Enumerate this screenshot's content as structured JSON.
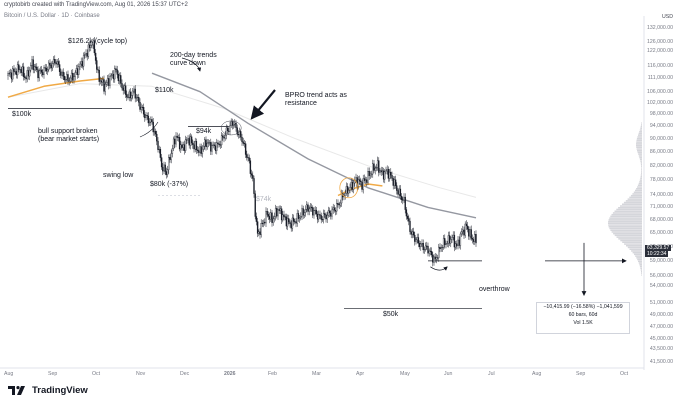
{
  "header": {
    "line1": "cryptobirb created with TradingView.com, Aug 01, 2026 15:37 UTC+2",
    "line2": "Bitcoin / U.S. Dollar · 1D · Coinbase",
    "currency": "USD"
  },
  "logo_text": "TradingView",
  "price_labels": [
    "63,329.57",
    "10:22:34"
  ],
  "stat_box": {
    "line1": "−10,415.99 (−16.58%) −1,041,599",
    "line2": "60 bars, 60d",
    "line3": "Vol 1.5K"
  },
  "annotations": {
    "cycle_top": "$126.2k (cycle top)",
    "trends_200": "200-day trends\ncurve down",
    "bpro": "BPRO trend acts as\nresistance",
    "k110": "$110k",
    "k100": "$100k",
    "k94": "$94k",
    "bull_support": "bull support broken\n(bear market starts)",
    "swing_low": "swing low",
    "k80": "$80k (-37%)",
    "k74": "$74k",
    "overthrow": "overthrow",
    "k50": "$50k"
  },
  "colors": {
    "up_candle": "#131722",
    "down_candle": "#131722",
    "sma200": "#9598a1",
    "ema200": "#e8e8e8",
    "bull_band": "#f0a945",
    "arrow": "#131722",
    "volume_profile": "#b2b5be"
  },
  "chart_data": {
    "type": "candlestick",
    "title": "Bitcoin / U.S. Dollar · 1D · Coinbase",
    "x_ticks": [
      "Aug",
      "Sep",
      "Oct",
      "Nov",
      "Dec",
      "2026",
      "Feb",
      "Mar",
      "Apr",
      "May",
      "Jun",
      "Jul",
      "Aug",
      "Sep",
      "Oct"
    ],
    "y_ticks": [
      132000,
      126000,
      122000,
      116000,
      111000,
      106000,
      102000,
      98000,
      94000,
      90000,
      86000,
      82000,
      78000,
      74000,
      71000,
      68000,
      65000,
      62000,
      59000,
      56000,
      54000,
      51000,
      49000,
      47000,
      45000,
      43500,
      41500
    ],
    "y_scale": "log",
    "ylim": [
      41000,
      134000
    ],
    "price_path": [
      [
        0,
        112000
      ],
      [
        5,
        113500
      ],
      [
        10,
        115000
      ],
      [
        15,
        111000
      ],
      [
        20,
        117000
      ],
      [
        25,
        113000
      ],
      [
        30,
        114000
      ],
      [
        35,
        116000
      ],
      [
        40,
        118000
      ],
      [
        45,
        112000
      ],
      [
        50,
        110500
      ],
      [
        55,
        112000
      ],
      [
        60,
        116000
      ],
      [
        65,
        121000
      ],
      [
        68,
        123500
      ],
      [
        70,
        126200
      ],
      [
        72,
        122000
      ],
      [
        75,
        112000
      ],
      [
        80,
        108000
      ],
      [
        85,
        111000
      ],
      [
        90,
        114000
      ],
      [
        95,
        108000
      ],
      [
        100,
        104000
      ],
      [
        105,
        106000
      ],
      [
        110,
        101000
      ],
      [
        115,
        97000
      ],
      [
        120,
        95000
      ],
      [
        125,
        88000
      ],
      [
        128,
        82000
      ],
      [
        132,
        80000
      ],
      [
        136,
        86000
      ],
      [
        140,
        91000
      ],
      [
        145,
        87000
      ],
      [
        150,
        90000
      ],
      [
        155,
        88000
      ],
      [
        160,
        86000
      ],
      [
        165,
        89000
      ],
      [
        170,
        87500
      ],
      [
        175,
        88000
      ],
      [
        180,
        91000
      ],
      [
        185,
        94000
      ],
      [
        188,
        95500
      ],
      [
        190,
        93000
      ],
      [
        195,
        90000
      ],
      [
        198,
        86000
      ],
      [
        200,
        84000
      ],
      [
        204,
        78000
      ],
      [
        206,
        70000
      ],
      [
        208,
        64500
      ],
      [
        212,
        67000
      ],
      [
        216,
        69500
      ],
      [
        220,
        68000
      ],
      [
        225,
        70500
      ],
      [
        230,
        68500
      ],
      [
        235,
        67000
      ],
      [
        240,
        68000
      ],
      [
        245,
        69500
      ],
      [
        250,
        71000
      ],
      [
        255,
        70000
      ],
      [
        260,
        68500
      ],
      [
        265,
        69000
      ],
      [
        270,
        70000
      ],
      [
        275,
        71500
      ],
      [
        280,
        74500
      ],
      [
        285,
        76000
      ],
      [
        290,
        78000
      ],
      [
        295,
        77000
      ],
      [
        300,
        79000
      ],
      [
        305,
        81500
      ],
      [
        308,
        82000
      ],
      [
        312,
        79500
      ],
      [
        316,
        80500
      ],
      [
        320,
        78500
      ],
      [
        325,
        75000
      ],
      [
        330,
        72500
      ],
      [
        333,
        68000
      ],
      [
        336,
        65000
      ],
      [
        340,
        63500
      ],
      [
        345,
        62000
      ],
      [
        350,
        61500
      ],
      [
        353,
        60000
      ],
      [
        356,
        59000
      ],
      [
        358,
        60500
      ],
      [
        362,
        62500
      ],
      [
        366,
        63000
      ],
      [
        370,
        64000
      ],
      [
        374,
        62000
      ],
      [
        378,
        65000
      ],
      [
        382,
        66500
      ],
      [
        386,
        64000
      ],
      [
        390,
        63300
      ]
    ],
    "sma200_path": [
      [
        120,
        113000
      ],
      [
        160,
        106000
      ],
      [
        200,
        95000
      ],
      [
        250,
        84000
      ],
      [
        300,
        76000
      ],
      [
        350,
        71000
      ],
      [
        390,
        68500
      ]
    ],
    "ema200_path": [
      [
        0,
        104000
      ],
      [
        60,
        109000
      ],
      [
        120,
        108000
      ],
      [
        180,
        100000
      ],
      [
        240,
        90000
      ],
      [
        300,
        82000
      ],
      [
        360,
        76000
      ],
      [
        390,
        73500
      ]
    ],
    "bull_band_path": [
      [
        0,
        104000
      ],
      [
        30,
        108000
      ],
      [
        60,
        110000
      ],
      [
        80,
        111000
      ]
    ],
    "bull_band_path_2": [
      [
        275,
        74000
      ],
      [
        285,
        75500
      ],
      [
        300,
        77000
      ],
      [
        312,
        76500
      ]
    ],
    "horizontal_levels": [
      {
        "label": "$100k",
        "price": 100000,
        "from": 0,
        "to": 95
      },
      {
        "label": "$94k",
        "price": 94000,
        "from": 150,
        "to": 185
      },
      {
        "label": "$74k",
        "price": 74000,
        "from": 125,
        "to": 160
      },
      {
        "label": "$50k",
        "price": 50000,
        "from": 280,
        "to": 395
      },
      {
        "label": "",
        "price": 59000,
        "from": 350,
        "to": 395
      }
    ],
    "measure": {
      "from_price": 62800,
      "to_price": 52400
    },
    "last_price": 63329.57
  }
}
